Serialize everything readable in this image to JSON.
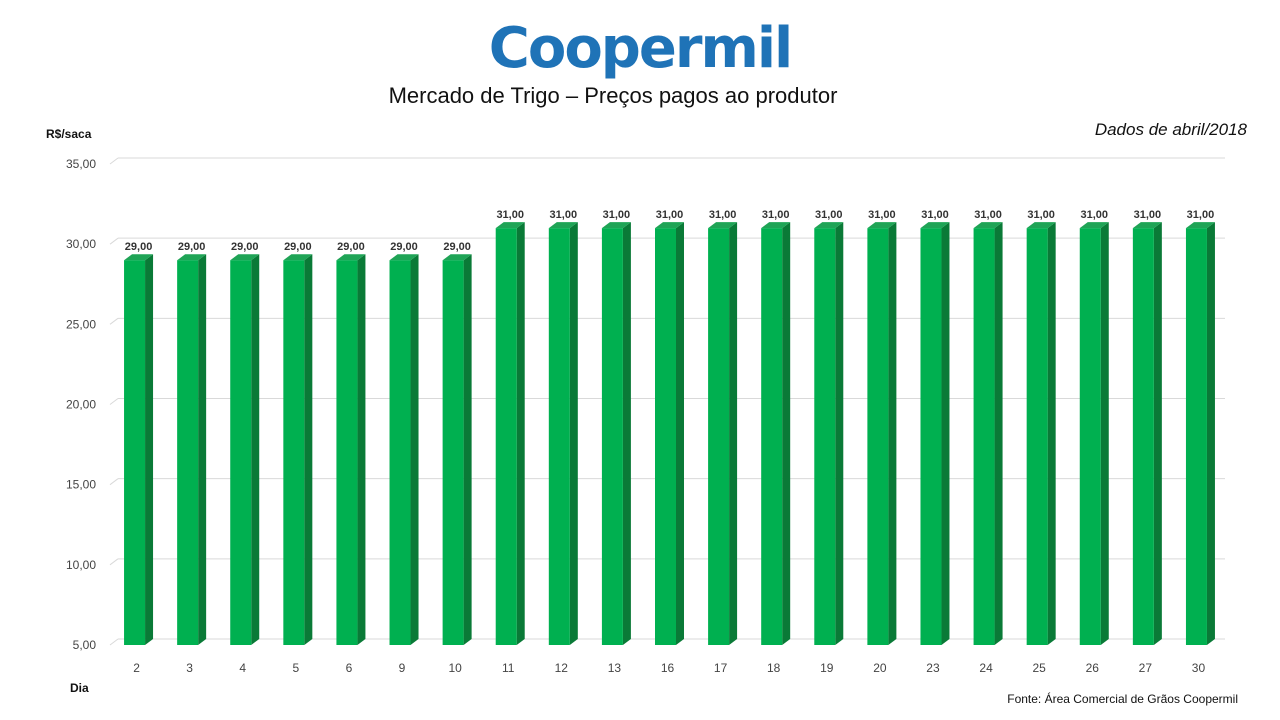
{
  "brand": {
    "logo_text": "Coopermil",
    "logo_color": "#1f73b7"
  },
  "chart_data": {
    "type": "bar",
    "title": "Mercado de Trigo – Preços pagos ao produtor",
    "subtitle": "Dados de abril/2018",
    "xlabel": "Dia",
    "ylabel": "R$/saca",
    "source": "Fonte:  Área Comercial de Grãos Coopermil",
    "ylim": [
      5,
      35
    ],
    "yticks": [
      5,
      10,
      15,
      20,
      25,
      30,
      35
    ],
    "grid": true,
    "categories": [
      "2",
      "3",
      "4",
      "5",
      "6",
      "9",
      "10",
      "11",
      "12",
      "13",
      "16",
      "17",
      "18",
      "19",
      "20",
      "23",
      "24",
      "25",
      "26",
      "27",
      "30"
    ],
    "values": [
      29,
      29,
      29,
      29,
      29,
      29,
      29,
      31,
      31,
      31,
      31,
      31,
      31,
      31,
      31,
      31,
      31,
      31,
      31,
      31,
      31
    ],
    "bar_color": "#00b050",
    "bar_side_color": "#0a7a37",
    "bar_top_color": "#1fa456"
  }
}
